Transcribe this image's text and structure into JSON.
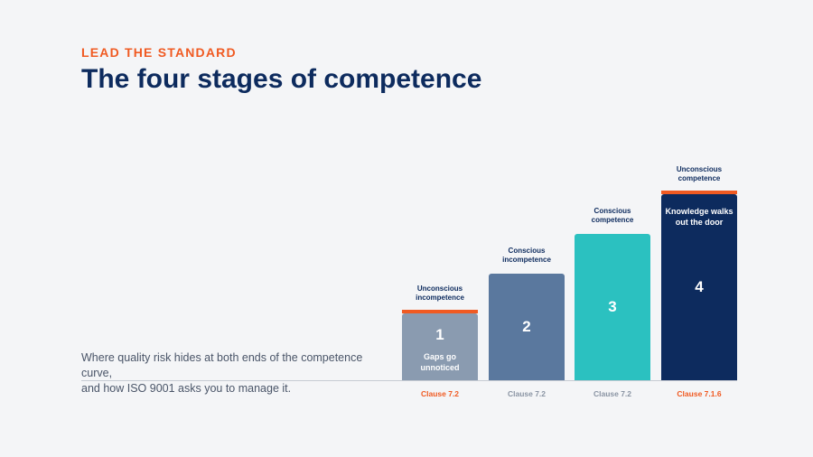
{
  "header": {
    "eyebrow": "LEAD THE STANDARD",
    "title": "The four stages of competence"
  },
  "description": {
    "line1": "Where quality risk hides at both ends of the competence curve,",
    "line2": "and how ISO 9001 asks you to manage it."
  },
  "colors": {
    "accent": "#f05a22",
    "navy": "#0d2b5e",
    "clause_muted": "#8a94a3"
  },
  "chart_data": {
    "type": "bar",
    "categories": [
      "Unconscious incompetence",
      "Conscious incompetence",
      "Conscious competence",
      "Unconscious competence"
    ],
    "values": [
      1,
      2,
      3,
      4
    ],
    "ylim": [
      0,
      4
    ],
    "grid": false,
    "bars": [
      {
        "number": "1",
        "label_lines": [
          "Unconscious",
          "incompetence"
        ],
        "note_lines": [
          "Gaps go",
          "unnoticed"
        ],
        "clause": "Clause 7.2",
        "color": "#8a9bb0",
        "highlight": true
      },
      {
        "number": "2",
        "label_lines": [
          "Conscious",
          "incompetence"
        ],
        "note_lines": [],
        "clause": "Clause 7.2",
        "color": "#5a789e",
        "highlight": false
      },
      {
        "number": "3",
        "label_lines": [
          "Conscious",
          "competence"
        ],
        "note_lines": [],
        "clause": "Clause 7.2",
        "color": "#2bc1c0",
        "highlight": false
      },
      {
        "number": "4",
        "label_lines": [
          "Unconscious",
          "competence"
        ],
        "note_lines": [
          "Knowledge walks",
          "out the door"
        ],
        "clause": "Clause 7.1.6",
        "color": "#0d2b5e",
        "highlight": true
      }
    ]
  }
}
